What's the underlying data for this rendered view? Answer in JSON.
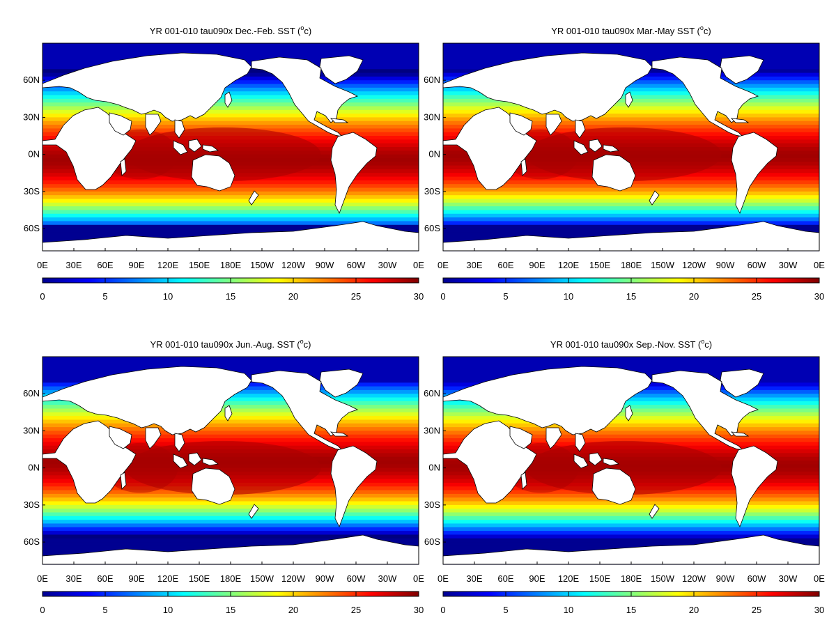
{
  "chart_data": [
    {
      "type": "heatmap",
      "title_prefix": "YR 001-010 tau090x Dec.-Feb. SST (",
      "title_unit_base": "c",
      "title_unit_sup": "o",
      "title_suffix": ")",
      "x_ticks": [
        "0E",
        "30E",
        "60E",
        "90E",
        "120E",
        "150E",
        "180E",
        "150W",
        "120W",
        "90W",
        "60W",
        "30W",
        "0E"
      ],
      "y_ticks": [
        "60N",
        "30N",
        "0N",
        "30S",
        "60S"
      ],
      "xlim": [
        0,
        360
      ],
      "ylim": [
        -78,
        90
      ],
      "colorbar": {
        "ticks": [
          "0",
          "5",
          "10",
          "15",
          "20",
          "25",
          "30"
        ],
        "range": [
          0,
          30
        ]
      },
      "season": "DJF"
    },
    {
      "type": "heatmap",
      "title_prefix": "YR 001-010 tau090x Mar.-May SST (",
      "title_unit_base": "c",
      "title_unit_sup": "o",
      "title_suffix": ")",
      "x_ticks": [
        "0E",
        "30E",
        "60E",
        "90E",
        "120E",
        "150E",
        "180E",
        "150W",
        "120W",
        "90W",
        "60W",
        "30W",
        "0E"
      ],
      "y_ticks": [
        "60N",
        "30N",
        "0N",
        "30S",
        "60S"
      ],
      "xlim": [
        0,
        360
      ],
      "ylim": [
        -78,
        90
      ],
      "colorbar": {
        "ticks": [
          "0",
          "5",
          "10",
          "15",
          "20",
          "25",
          "30"
        ],
        "range": [
          0,
          30
        ]
      },
      "season": "MAM"
    },
    {
      "type": "heatmap",
      "title_prefix": "YR 001-010 tau090x Jun.-Aug. SST (",
      "title_unit_base": "c",
      "title_unit_sup": "o",
      "title_suffix": ")",
      "x_ticks": [
        "0E",
        "30E",
        "60E",
        "90E",
        "120E",
        "150E",
        "180E",
        "150W",
        "120W",
        "90W",
        "60W",
        "30W",
        "0E"
      ],
      "y_ticks": [
        "60N",
        "30N",
        "0N",
        "30S",
        "60S"
      ],
      "xlim": [
        0,
        360
      ],
      "ylim": [
        -78,
        90
      ],
      "colorbar": {
        "ticks": [
          "0",
          "5",
          "10",
          "15",
          "20",
          "25",
          "30"
        ],
        "range": [
          0,
          30
        ]
      },
      "season": "JJA"
    },
    {
      "type": "heatmap",
      "title_prefix": "YR 001-010 tau090x Sep.-Nov. SST (",
      "title_unit_base": "c",
      "title_unit_sup": "o",
      "title_suffix": ")",
      "x_ticks": [
        "0E",
        "30E",
        "60E",
        "90E",
        "120E",
        "150E",
        "180E",
        "150W",
        "120W",
        "90W",
        "60W",
        "30W",
        "0E"
      ],
      "y_ticks": [
        "60N",
        "30N",
        "0N",
        "30S",
        "60S"
      ],
      "xlim": [
        0,
        360
      ],
      "ylim": [
        -78,
        90
      ],
      "colorbar": {
        "ticks": [
          "0",
          "5",
          "10",
          "15",
          "20",
          "25",
          "30"
        ],
        "range": [
          0,
          30
        ]
      },
      "season": "SON"
    }
  ]
}
